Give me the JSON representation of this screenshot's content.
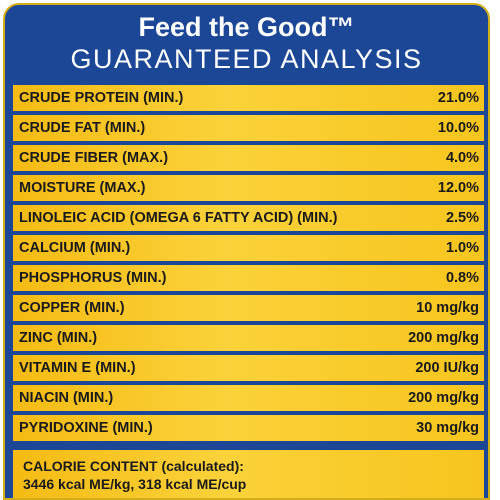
{
  "header": {
    "title": "Feed the Good™",
    "subtitle": "GUARANTEED ANALYSIS"
  },
  "analysis": [
    {
      "label": "CRUDE PROTEIN (MIN.)",
      "value": "21.0%"
    },
    {
      "label": "CRUDE FAT (MIN.)",
      "value": "10.0%"
    },
    {
      "label": "CRUDE FIBER (MAX.)",
      "value": "4.0%"
    },
    {
      "label": "MOISTURE (MAX.)",
      "value": "12.0%"
    },
    {
      "label": "LINOLEIC ACID (OMEGA 6 FATTY ACID) (MIN.)",
      "value": "2.5%"
    },
    {
      "label": "CALCIUM (MIN.)",
      "value": "1.0%"
    },
    {
      "label": "PHOSPHORUS (MIN.)",
      "value": "0.8%"
    },
    {
      "label": "COPPER (MIN.)",
      "value": "10 mg/kg"
    },
    {
      "label": "ZINC (MIN.)",
      "value": "200 mg/kg"
    },
    {
      "label": "VITAMIN E (MIN.)",
      "value": "200 IU/kg"
    },
    {
      "label": "NIACIN (MIN.)",
      "value": "200 mg/kg"
    },
    {
      "label": "PYRIDOXINE (MIN.)",
      "value": "30 mg/kg"
    }
  ],
  "calorie": {
    "title": "CALORIE CONTENT (calculated):",
    "value": "3446 kcal ME/kg, 318 kcal ME/cup"
  },
  "colors": {
    "panel_blue": "#1c4797",
    "row_yellow": "#f7c51d",
    "border_gold": "#d4ad1a"
  }
}
